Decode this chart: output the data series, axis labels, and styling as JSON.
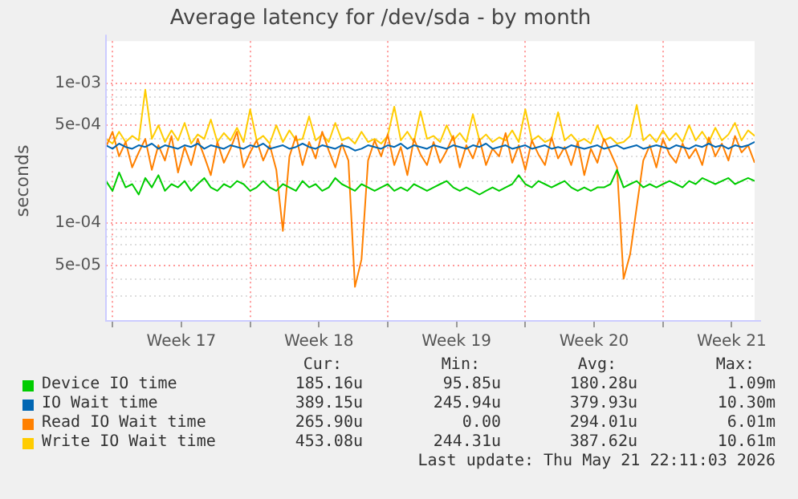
{
  "chart_data": {
    "type": "line",
    "title": "Average latency for /dev/sda - by month",
    "ylabel": "seconds",
    "log": "y",
    "grid": true,
    "legend": "bottom",
    "marker": "none",
    "line_style": "solid",
    "ylim": [
      2e-05,
      0.002
    ],
    "yticks": [
      {
        "value": 2e-05,
        "label": null
      },
      {
        "value": 3e-05,
        "label": null
      },
      {
        "value": 4e-05,
        "label": null
      },
      {
        "value": 5e-05,
        "label": "5e-05"
      },
      {
        "value": 6e-05,
        "label": null
      },
      {
        "value": 7e-05,
        "label": null
      },
      {
        "value": 8e-05,
        "label": null
      },
      {
        "value": 9e-05,
        "label": null
      },
      {
        "value": 0.0001,
        "label": "1e-04"
      },
      {
        "value": 0.0002,
        "label": null
      },
      {
        "value": 0.0003,
        "label": null
      },
      {
        "value": 0.0004,
        "label": null
      },
      {
        "value": 0.0005,
        "label": "5e-04"
      },
      {
        "value": 0.0006,
        "label": null
      },
      {
        "value": 0.0007,
        "label": null
      },
      {
        "value": 0.0008,
        "label": null
      },
      {
        "value": 0.0009,
        "label": null
      },
      {
        "value": 0.001,
        "label": "1e-03"
      }
    ],
    "xlim": [
      "2026-04-19T16:00",
      "2026-05-22T16:00"
    ],
    "xticks": [
      {
        "value": "2026-04-20T00:00",
        "label": null
      },
      {
        "value": "2026-04-23T12:00",
        "label": "Week 17"
      },
      {
        "value": "2026-04-27T00:00",
        "label": null
      },
      {
        "value": "2026-04-30T12:00",
        "label": "Week 18"
      },
      {
        "value": "2026-05-04T00:00",
        "label": null
      },
      {
        "value": "2026-05-07T12:00",
        "label": "Week 19"
      },
      {
        "value": "2026-05-11T00:00",
        "label": null
      },
      {
        "value": "2026-05-14T12:00",
        "label": "Week 20"
      },
      {
        "value": "2026-05-18T00:00",
        "label": null
      },
      {
        "value": "2026-05-21T12:00",
        "label": "Week 21"
      }
    ],
    "x": [
      "2026-04-19T16:00",
      "2026-04-20T00:00",
      "2026-04-20T08:00",
      "2026-04-20T16:00",
      "2026-04-21T00:00",
      "2026-04-21T08:00",
      "2026-04-21T16:00",
      "2026-04-22T00:00",
      "2026-04-22T08:00",
      "2026-04-22T16:00",
      "2026-04-23T00:00",
      "2026-04-23T08:00",
      "2026-04-23T16:00",
      "2026-04-24T00:00",
      "2026-04-24T08:00",
      "2026-04-24T16:00",
      "2026-04-25T00:00",
      "2026-04-25T08:00",
      "2026-04-25T16:00",
      "2026-04-26T00:00",
      "2026-04-26T08:00",
      "2026-04-26T16:00",
      "2026-04-27T00:00",
      "2026-04-27T08:00",
      "2026-04-27T16:00",
      "2026-04-28T00:00",
      "2026-04-28T08:00",
      "2026-04-28T16:00",
      "2026-04-29T00:00",
      "2026-04-29T08:00",
      "2026-04-29T16:00",
      "2026-04-30T00:00",
      "2026-04-30T08:00",
      "2026-04-30T16:00",
      "2026-05-01T00:00",
      "2026-05-01T08:00",
      "2026-05-01T16:00",
      "2026-05-02T00:00",
      "2026-05-02T08:00",
      "2026-05-02T16:00",
      "2026-05-03T00:00",
      "2026-05-03T08:00",
      "2026-05-03T16:00",
      "2026-05-04T00:00",
      "2026-05-04T08:00",
      "2026-05-04T16:00",
      "2026-05-05T00:00",
      "2026-05-05T08:00",
      "2026-05-05T16:00",
      "2026-05-06T00:00",
      "2026-05-06T08:00",
      "2026-05-06T16:00",
      "2026-05-07T00:00",
      "2026-05-07T08:00",
      "2026-05-07T16:00",
      "2026-05-08T00:00",
      "2026-05-08T08:00",
      "2026-05-08T16:00",
      "2026-05-09T00:00",
      "2026-05-09T08:00",
      "2026-05-09T16:00",
      "2026-05-10T00:00",
      "2026-05-10T08:00",
      "2026-05-10T16:00",
      "2026-05-11T00:00",
      "2026-05-11T08:00",
      "2026-05-11T16:00",
      "2026-05-12T00:00",
      "2026-05-12T08:00",
      "2026-05-12T16:00",
      "2026-05-13T00:00",
      "2026-05-13T08:00",
      "2026-05-13T16:00",
      "2026-05-14T00:00",
      "2026-05-14T08:00",
      "2026-05-14T16:00",
      "2026-05-15T00:00",
      "2026-05-15T08:00",
      "2026-05-15T16:00",
      "2026-05-16T00:00",
      "2026-05-16T08:00",
      "2026-05-16T16:00",
      "2026-05-17T00:00",
      "2026-05-17T08:00",
      "2026-05-17T16:00",
      "2026-05-18T00:00",
      "2026-05-18T08:00",
      "2026-05-18T16:00",
      "2026-05-19T00:00",
      "2026-05-19T08:00",
      "2026-05-19T16:00",
      "2026-05-20T00:00",
      "2026-05-20T08:00",
      "2026-05-20T16:00",
      "2026-05-21T00:00",
      "2026-05-21T08:00",
      "2026-05-21T16:00",
      "2026-05-22T00:00",
      "2026-05-22T08:00",
      "2026-05-22T16:00"
    ],
    "series": [
      {
        "name": "Device IO time",
        "color": "#00cc00",
        "values": [
          0.0002,
          0.00017,
          0.00023,
          0.00018,
          0.00019,
          0.00016,
          0.00021,
          0.00018,
          0.00022,
          0.00017,
          0.00019,
          0.00018,
          0.0002,
          0.00017,
          0.00019,
          0.00021,
          0.00018,
          0.00017,
          0.00019,
          0.00018,
          0.0002,
          0.00019,
          0.00017,
          0.00018,
          0.0002,
          0.00018,
          0.00017,
          0.00019,
          0.00018,
          0.00017,
          0.0002,
          0.00018,
          0.00019,
          0.00017,
          0.00018,
          0.00021,
          0.00019,
          0.00018,
          0.00017,
          0.00019,
          0.00018,
          0.00017,
          0.00018,
          0.00019,
          0.00017,
          0.00018,
          0.00017,
          0.00019,
          0.00018,
          0.00017,
          0.00018,
          0.00019,
          0.0002,
          0.00018,
          0.00017,
          0.00018,
          0.00017,
          0.00016,
          0.00017,
          0.00018,
          0.00017,
          0.00018,
          0.00019,
          0.00022,
          0.00019,
          0.00018,
          0.0002,
          0.00019,
          0.00018,
          0.00019,
          0.0002,
          0.00018,
          0.00017,
          0.00018,
          0.00017,
          0.00018,
          0.00018,
          0.00019,
          0.00024,
          0.00018,
          0.00019,
          0.0002,
          0.00018,
          0.00019,
          0.00018,
          0.00019,
          0.0002,
          0.00019,
          0.00018,
          0.0002,
          0.00019,
          0.00021,
          0.0002,
          0.00019,
          0.0002,
          0.00021,
          0.00019,
          0.0002,
          0.00021,
          0.0002
        ]
      },
      {
        "name": "IO Wait time",
        "color": "#0066b3",
        "values": [
          0.00036,
          0.00034,
          0.00037,
          0.00035,
          0.00034,
          0.00036,
          0.00035,
          0.00037,
          0.00034,
          0.00036,
          0.00035,
          0.00034,
          0.00036,
          0.00035,
          0.00037,
          0.00034,
          0.00036,
          0.00035,
          0.00034,
          0.00036,
          0.00035,
          0.00034,
          0.00036,
          0.00035,
          0.00037,
          0.00034,
          0.00035,
          0.00036,
          0.00034,
          0.00035,
          0.00037,
          0.00035,
          0.00034,
          0.00036,
          0.00035,
          0.00034,
          0.00036,
          0.00035,
          0.00033,
          0.00034,
          0.00036,
          0.00035,
          0.00034,
          0.00036,
          0.00035,
          0.00037,
          0.00034,
          0.00036,
          0.00035,
          0.00034,
          0.00036,
          0.00035,
          0.00034,
          0.00036,
          0.00035,
          0.00034,
          0.00036,
          0.00035,
          0.00037,
          0.00034,
          0.00035,
          0.00036,
          0.00034,
          0.00035,
          0.00036,
          0.00034,
          0.00035,
          0.00036,
          0.00034,
          0.00035,
          0.00034,
          0.00036,
          0.00035,
          0.00034,
          0.00035,
          0.00036,
          0.00034,
          0.00035,
          0.00036,
          0.00034,
          0.00035,
          0.00036,
          0.00034,
          0.00035,
          0.00036,
          0.00035,
          0.00034,
          0.00036,
          0.00035,
          0.00034,
          0.00036,
          0.00035,
          0.00037,
          0.00035,
          0.00036,
          0.00034,
          0.00036,
          0.00035,
          0.00036,
          0.00038
        ]
      },
      {
        "name": "Read IO Wait time",
        "color": "#ff8000",
        "values": [
          0.00035,
          0.00045,
          0.0003,
          0.00038,
          0.00025,
          0.00032,
          0.0004,
          0.00024,
          0.00036,
          0.00028,
          0.00042,
          0.00023,
          0.00035,
          0.00026,
          0.0004,
          0.0003,
          0.00022,
          0.00038,
          0.00027,
          0.00034,
          0.00045,
          0.00025,
          0.00032,
          0.00039,
          0.00028,
          0.00036,
          0.00024,
          8.8e-05,
          0.0003,
          0.00042,
          0.00026,
          0.00038,
          0.00029,
          0.00045,
          0.00033,
          0.00025,
          0.00037,
          0.00028,
          3.5e-05,
          5.5e-05,
          0.00028,
          0.00039,
          0.0003,
          0.00043,
          0.00026,
          0.00035,
          0.00022,
          0.0004,
          0.00031,
          0.00026,
          0.00038,
          0.00027,
          0.00033,
          0.00042,
          0.00025,
          0.00036,
          0.00029,
          0.0004,
          0.00026,
          0.00034,
          0.0003,
          0.00044,
          0.00027,
          0.00036,
          0.00024,
          0.00039,
          0.00031,
          0.00026,
          0.00041,
          0.00029,
          0.00035,
          0.00026,
          0.00038,
          0.00022,
          0.00034,
          0.00027,
          0.0004,
          0.00032,
          0.00025,
          4e-05,
          6e-05,
          0.00013,
          0.00028,
          0.00036,
          0.00025,
          0.0004,
          0.00031,
          0.00027,
          0.00037,
          0.00029,
          0.00034,
          0.00026,
          0.00041,
          0.0003,
          0.00037,
          0.00028,
          0.00042,
          0.00032,
          0.00036,
          0.00027
        ]
      },
      {
        "name": "Write IO Wait time",
        "color": "#ffcc00",
        "values": [
          0.0004,
          0.00037,
          0.00045,
          0.00038,
          0.00042,
          0.00039,
          0.0009,
          0.0004,
          0.0005,
          0.00038,
          0.00046,
          0.00039,
          0.00052,
          0.00037,
          0.00043,
          0.0004,
          0.00055,
          0.00038,
          0.00044,
          0.00039,
          0.00048,
          0.00038,
          0.00065,
          0.00039,
          0.00042,
          0.00037,
          0.0005,
          0.00038,
          0.00046,
          0.00039,
          0.0004,
          0.00058,
          0.00039,
          0.00043,
          0.00038,
          0.00052,
          0.00039,
          0.00041,
          0.00037,
          0.00045,
          0.00038,
          0.0004,
          0.00037,
          0.00042,
          0.00068,
          0.00039,
          0.00045,
          0.00038,
          0.00063,
          0.0004,
          0.00042,
          0.00038,
          0.0005,
          0.00039,
          0.00044,
          0.00038,
          0.0006,
          0.00039,
          0.00043,
          0.00038,
          0.00041,
          0.00039,
          0.00046,
          0.00038,
          0.00065,
          0.00039,
          0.00042,
          0.00038,
          0.0004,
          0.00062,
          0.00039,
          0.00043,
          0.00038,
          0.0004,
          0.00037,
          0.0005,
          0.00039,
          0.00041,
          0.00037,
          0.00038,
          0.00042,
          0.0007,
          0.00039,
          0.00043,
          0.00038,
          0.00046,
          0.00039,
          0.00044,
          0.00038,
          0.0005,
          0.00039,
          0.00045,
          0.00038,
          0.00048,
          0.00039,
          0.00043,
          0.00052,
          0.00039,
          0.00046,
          0.00042
        ]
      }
    ],
    "annotations": [
      "Cur:",
      "Min:",
      "Avg:",
      "Max:",
      "185.16u",
      "95.85u",
      "180.28u",
      "1.09m",
      "389.15u",
      "245.94u",
      "379.93u",
      "10.30m",
      "265.90u",
      "0.00",
      "294.01u",
      "6.01m",
      "453.08u",
      "244.31u",
      "387.62u",
      "10.61m",
      "Last update: Thu May 21 22:11:03 2026"
    ]
  }
}
